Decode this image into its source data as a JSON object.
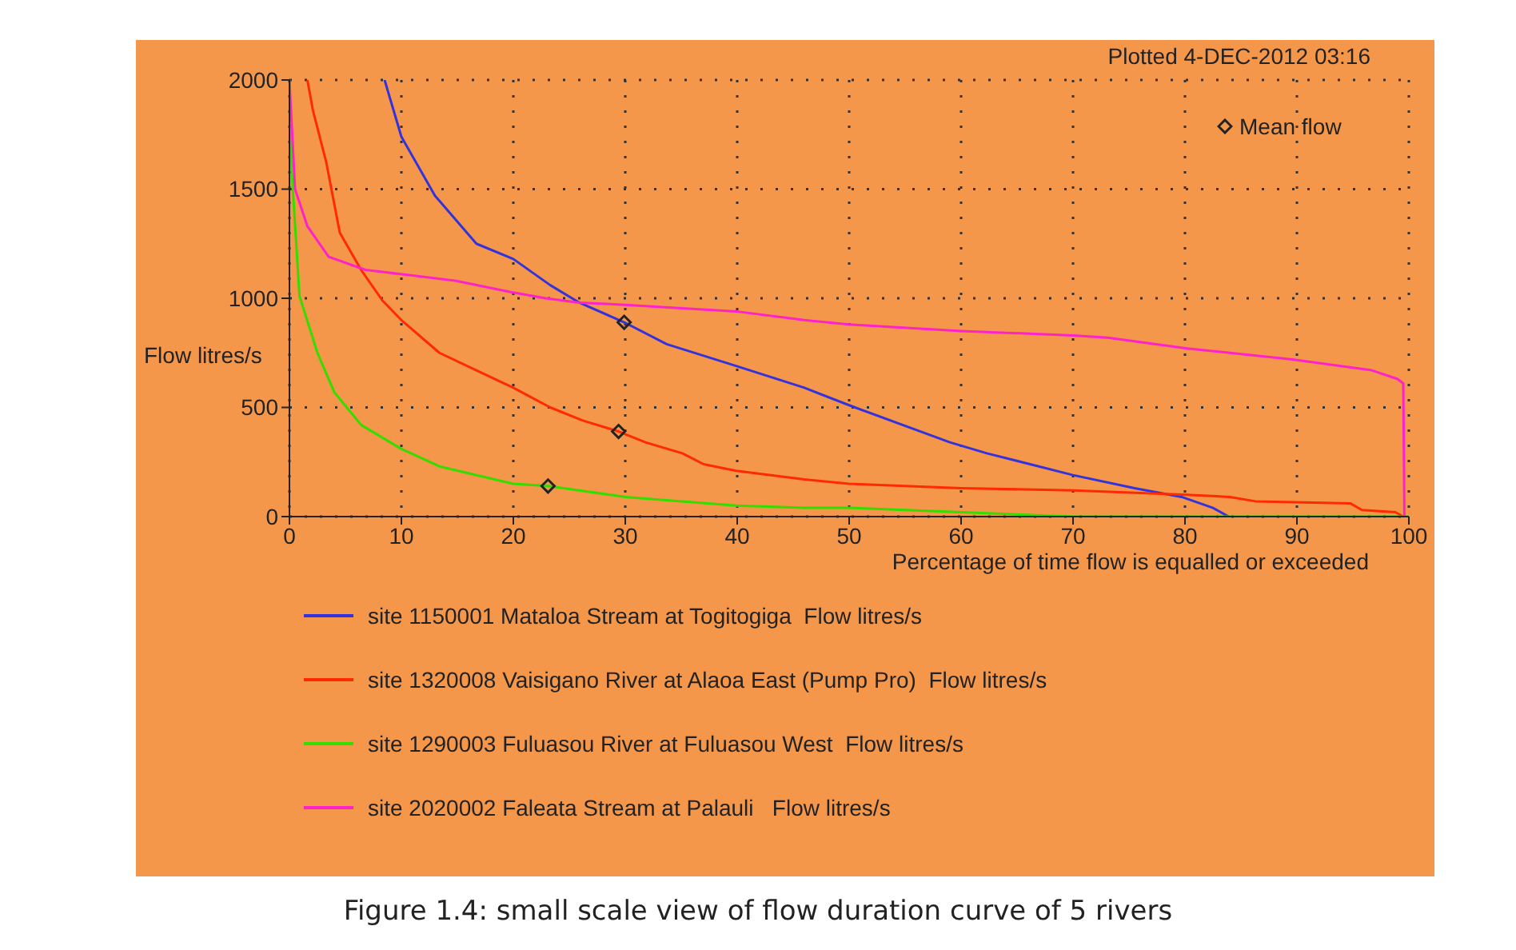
{
  "chart_data": {
    "type": "line",
    "title": null,
    "xlabel": "Percentage of time flow is equalled or exceeded",
    "ylabel": "Flow litres/s",
    "annotations": [
      "Plotted 4-DEC-2012 03:16",
      "Figure 1.4: small scale view of flow duration curve of 5 rivers"
    ],
    "xlim": [
      0,
      100
    ],
    "xticks": [
      0,
      10,
      20,
      30,
      40,
      50,
      60,
      70,
      80,
      90,
      100
    ],
    "ylim": [
      0,
      2000
    ],
    "yticks": [
      0,
      500,
      1000,
      1500,
      2000
    ],
    "grid": true,
    "legend": "bottom",
    "marker": "none",
    "line_style": "solid",
    "series": [
      {
        "name": "site 1150001 Mataloa Stream at Togitogiga  Flow litres/s",
        "color": "#3333dd",
        "x": [
          8.5,
          10,
          13,
          16.7,
          20,
          23.3,
          25.9,
          29.9,
          33.7,
          39.9,
          46,
          50,
          59,
          62.3,
          70,
          75.5,
          79.7,
          82.5,
          83.9
        ],
        "values": [
          2000,
          1740,
          1470,
          1250,
          1180,
          1060,
          980,
          890,
          790,
          690,
          590,
          510,
          340,
          290,
          190,
          130,
          90,
          40,
          0
        ]
      },
      {
        "name": "site 1320008 Vaisigano River at Alaoa East (Pump Pro)  Flow litres/s",
        "color": "#ff2a00",
        "x": [
          1.6,
          2.1,
          3.3,
          4.5,
          6.4,
          8.3,
          10,
          13.4,
          16.7,
          20,
          23.3,
          26.2,
          29.4,
          31.8,
          35.1,
          37,
          39.9,
          46,
          50,
          60,
          70,
          80.2,
          84,
          86.3,
          94.8,
          95.8,
          98.8,
          99.5
        ],
        "values": [
          2000,
          1860,
          1620,
          1300,
          1130,
          990,
          900,
          750,
          670,
          590,
          500,
          440,
          390,
          340,
          290,
          240,
          210,
          170,
          150,
          130,
          120,
          100,
          90,
          70,
          60,
          30,
          20,
          0
        ]
      },
      {
        "name": "site 1290003 Fuluasou River at Fuluasou West  Flow litres/s",
        "color": "#33dd00",
        "x": [
          0,
          0.3,
          0.9,
          2.5,
          4,
          6.4,
          10,
          13.4,
          20,
          23.1,
          30,
          39.9,
          46,
          50,
          60,
          70,
          100
        ],
        "values": [
          1800,
          1500,
          1010,
          750,
          570,
          420,
          310,
          230,
          150,
          140,
          90,
          50,
          40,
          40,
          20,
          0,
          0
        ]
      },
      {
        "name": "site 2020002 Faleata Stream at Palauli   Flow litres/s",
        "color": "#ff22cc",
        "x": [
          0,
          0.5,
          1.6,
          3.5,
          6.8,
          10.1,
          14.9,
          19.6,
          22.9,
          25.9,
          30,
          39.9,
          46,
          50,
          60,
          70,
          73.1,
          80.2,
          89.6,
          96.7,
          99,
          99.5,
          99.6
        ],
        "values": [
          2000,
          1500,
          1330,
          1190,
          1130,
          1110,
          1080,
          1030,
          1000,
          980,
          970,
          940,
          900,
          880,
          850,
          830,
          820,
          770,
          720,
          670,
          630,
          610,
          0
        ]
      },
      {
        "name": "Mean flow",
        "type": "scatter",
        "color": "#222222",
        "marker": "diamond",
        "x": [
          29.9,
          29.4,
          23.1
        ],
        "values": [
          890,
          390,
          140
        ]
      }
    ]
  }
}
